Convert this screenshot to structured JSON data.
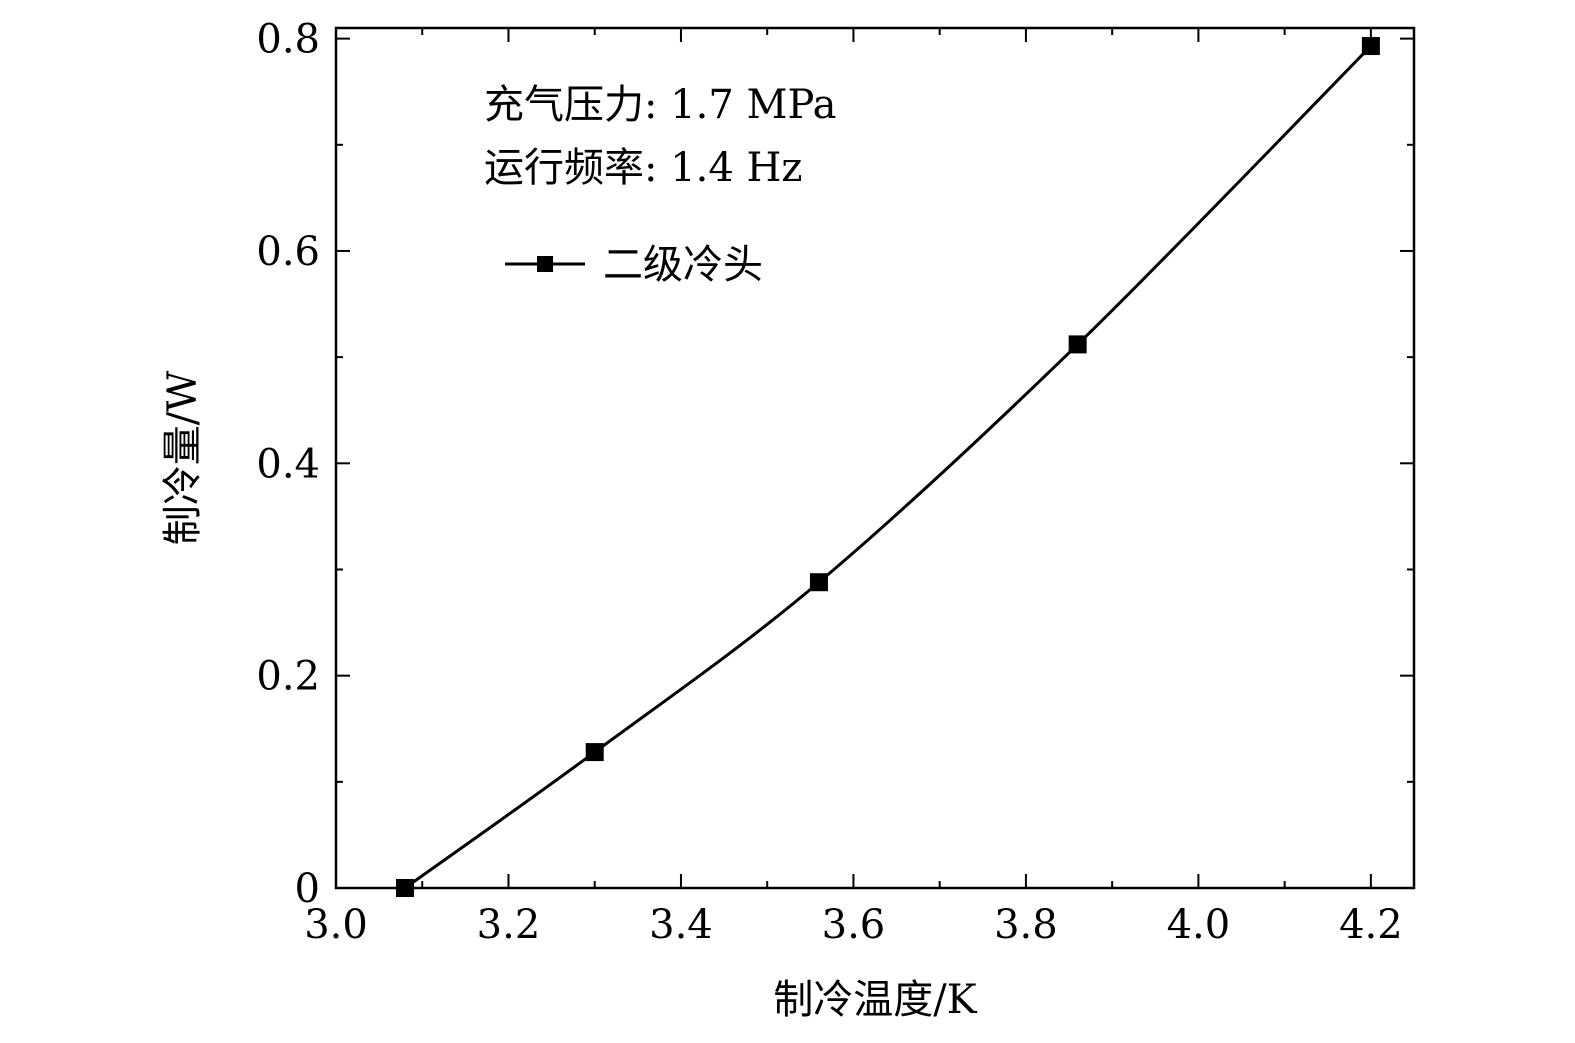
{
  "chart_data": {
    "type": "line",
    "xlabel": "制冷温度/K",
    "ylabel": "制冷量/W",
    "xlim": [
      3.0,
      4.25
    ],
    "ylim": [
      0,
      0.81
    ],
    "xticks": [
      "3.0",
      "3.2",
      "3.4",
      "3.6",
      "3.8",
      "4.0",
      "4.2"
    ],
    "yticks": [
      "0",
      "0.2",
      "0.4",
      "0.6",
      "0.8"
    ],
    "annotations": [
      "充气压力: 1.7 MPa",
      "运行频率: 1.4 Hz"
    ],
    "legend_position": "top-left",
    "series": [
      {
        "name": "二级冷头",
        "marker": "square",
        "color": "#000000",
        "x": [
          3.08,
          3.3,
          3.56,
          3.86,
          4.2
        ],
        "y": [
          0.0,
          0.128,
          0.288,
          0.512,
          0.793
        ]
      }
    ]
  }
}
